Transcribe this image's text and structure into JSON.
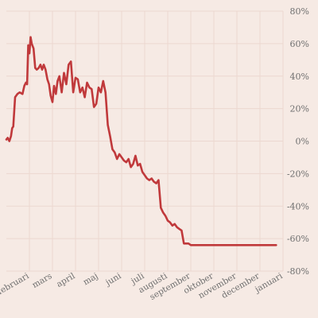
{
  "chart_data": {
    "type": "line",
    "title": "",
    "xlabel": "",
    "ylabel": "",
    "ylim": [
      -80,
      80
    ],
    "yticks": [
      80,
      60,
      40,
      20,
      0,
      -20,
      -40,
      -60,
      -80
    ],
    "ytick_labels": [
      "80%",
      "60%",
      "40%",
      "20%",
      "0%",
      "-20%",
      "-40%",
      "-60%",
      "-80%"
    ],
    "xlim": [
      0,
      12
    ],
    "xticks": [
      1,
      2,
      3,
      4,
      5,
      6,
      7,
      8,
      9,
      10,
      11,
      12
    ],
    "xtick_labels": [
      "februari",
      "mars",
      "april",
      "maj",
      "juni",
      "juli",
      "augusti",
      "september",
      "oktober",
      "november",
      "december",
      "januari"
    ],
    "grid": true,
    "line_color": "#c0393b",
    "series": [
      {
        "name": "",
        "x": [
          0.0,
          0.06,
          0.13,
          0.2,
          0.25,
          0.3,
          0.38,
          0.48,
          0.58,
          0.7,
          0.78,
          0.85,
          0.9,
          0.95,
          1.0,
          1.05,
          1.1,
          1.18,
          1.25,
          1.32,
          1.4,
          1.48,
          1.55,
          1.62,
          1.7,
          1.78,
          1.85,
          1.92,
          2.0,
          2.07,
          2.15,
          2.22,
          2.3,
          2.4,
          2.5,
          2.6,
          2.7,
          2.8,
          2.9,
          3.0,
          3.1,
          3.2,
          3.3,
          3.4,
          3.5,
          3.6,
          3.7,
          3.8,
          3.9,
          4.0,
          4.1,
          4.2,
          4.3,
          4.4,
          4.5,
          4.6,
          4.7,
          4.8,
          4.9,
          5.0,
          5.1,
          5.2,
          5.3,
          5.4,
          5.5,
          5.6,
          5.7,
          5.8,
          5.9,
          6.0,
          6.1,
          6.2,
          6.3,
          6.4,
          6.5,
          6.6,
          6.7,
          6.8,
          6.9,
          7.0,
          7.1,
          7.2,
          7.3,
          7.4,
          7.5,
          7.6,
          7.7,
          7.8,
          7.9,
          8.0,
          8.1,
          8.2,
          8.3,
          8.4,
          8.5,
          8.6,
          8.7,
          8.8,
          8.9,
          9.0,
          9.05,
          9.1,
          9.2,
          9.3,
          9.4,
          9.5,
          9.6,
          9.7,
          9.8,
          9.9,
          10.0,
          10.1,
          10.2,
          10.3,
          10.4,
          10.5,
          10.6,
          10.7,
          10.8,
          10.9,
          10.95,
          11.0,
          11.1,
          11.2,
          11.3,
          11.4,
          11.5,
          11.6,
          11.7
        ],
        "y": [
          1,
          2,
          0,
          3,
          8,
          9,
          27,
          29,
          30,
          29,
          34,
          36,
          35,
          59,
          54,
          64,
          60,
          57,
          45,
          44,
          45,
          47,
          44,
          47,
          44,
          38,
          35,
          28,
          24,
          34,
          29,
          37,
          40,
          30,
          42,
          35,
          47,
          49,
          30,
          39,
          38,
          30,
          33,
          27,
          36,
          33,
          32,
          21,
          23,
          33,
          30,
          37,
          30,
          10,
          3,
          -5,
          -7,
          -11,
          -8,
          -10,
          -12,
          -13,
          -11,
          -16,
          -14,
          -9,
          -15,
          -14,
          -19,
          -21,
          -23,
          -24,
          -23,
          -25,
          -26,
          -24,
          -41,
          -44,
          -46,
          -49,
          -50,
          -52,
          -51,
          -53,
          -54,
          -55,
          -63,
          -63,
          -63,
          -64,
          -64,
          -64,
          -64,
          -64,
          -64,
          -64,
          -64,
          -64,
          -64,
          -64,
          -64,
          -64,
          -64,
          -64,
          -64,
          -64,
          -64,
          -64,
          -64,
          -64,
          -64,
          -64,
          -64,
          -64,
          -64,
          -64,
          -64,
          -64,
          -64,
          -64,
          -64,
          -64,
          -64,
          -64,
          -64,
          -64,
          -64,
          -64,
          -64
        ]
      }
    ]
  }
}
